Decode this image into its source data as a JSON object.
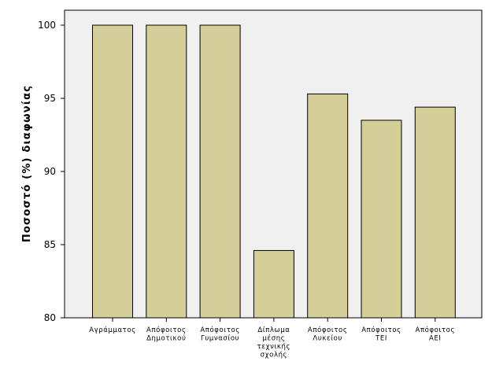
{
  "chart_data": {
    "type": "bar",
    "title": "",
    "xlabel": "",
    "ylabel": "Ποσοστό (%) διαφωνίας",
    "ylim": [
      80,
      100
    ],
    "yticks": [
      80,
      85,
      90,
      95,
      100
    ],
    "categories": [
      [
        "Αγράμματος"
      ],
      [
        "Απόφοιτος",
        "Δημοτικού"
      ],
      [
        "Απόφοιτος",
        "Γυμνασίου"
      ],
      [
        "Δίπλωμα",
        "μέσης",
        "τεχνικής",
        "σχολής"
      ],
      [
        "Απόφοιτος",
        "Λυκείου"
      ],
      [
        "Απόφοιτος",
        "ΤΕΙ"
      ],
      [
        "Απόφοιτος",
        "ΑΕΙ"
      ]
    ],
    "values": [
      100,
      100,
      100,
      84.6,
      95.3,
      93.5,
      94.4
    ],
    "colors": {
      "plot_background": "#f0f0f0",
      "bar_fill": "#d4cf98",
      "bar_stroke": "#000000"
    }
  }
}
